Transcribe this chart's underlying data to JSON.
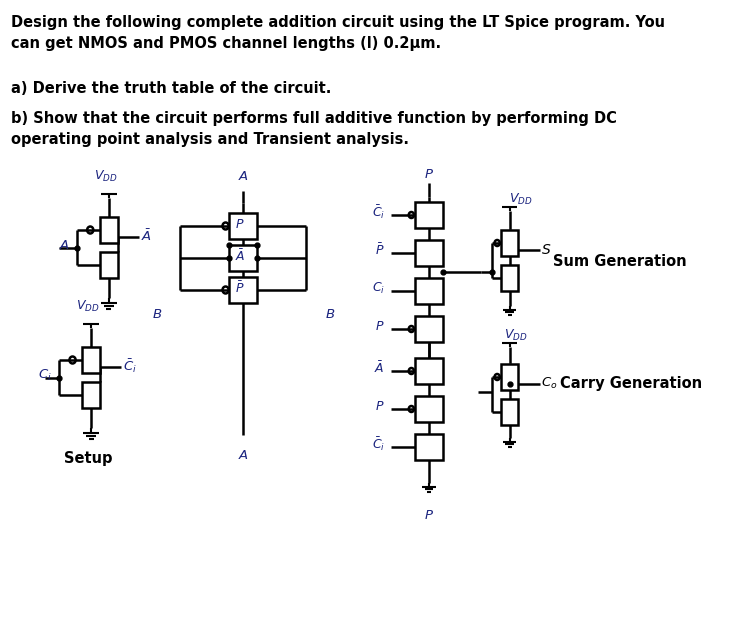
{
  "title_line1": "Design the following complete addition circuit using the LT Spice program. You",
  "title_line2": "can get NMOS and PMOS channel lengths (l) 0.2μm.",
  "part_a": "a) Derive the truth table of the circuit.",
  "part_b_line1": "b) Show that the circuit performs full additive function by performing DC",
  "part_b_line2": "operating point analysis and Transient analysis.",
  "setup_label": "Setup",
  "sum_gen_label": "Sum Generation",
  "carry_gen_label": "Carry Generation",
  "bg_color": "#ffffff",
  "text_color": "#000000",
  "circuit_color": "#000000",
  "label_color": "#1a237e",
  "figsize": [
    7.45,
    6.33
  ],
  "dpi": 100
}
